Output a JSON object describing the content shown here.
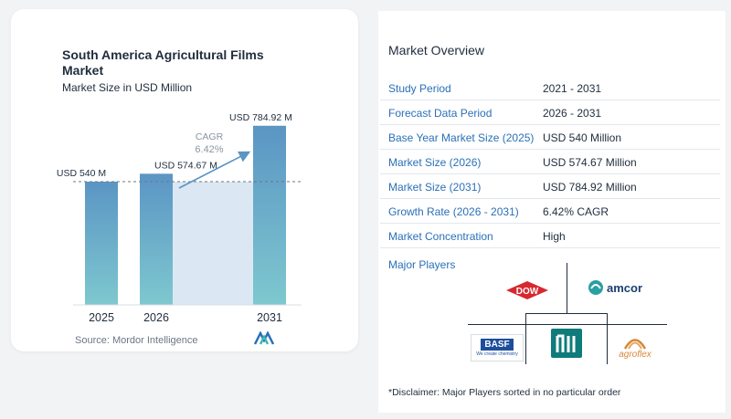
{
  "chart_data": {
    "type": "bar",
    "title": "South America Agricultural Films Market",
    "subtitle": "Market Size in USD Million",
    "categories": [
      "2025",
      "2026",
      "2031"
    ],
    "values": [
      540,
      574.67,
      784.92
    ],
    "data_labels": [
      "USD 540 M",
      "USD 574.67 M",
      "USD 784.92 M"
    ],
    "cagr_label": "CAGR",
    "cagr_value": "6.42%",
    "ylim": [
      0,
      800
    ],
    "grid": false,
    "colors": {
      "bar_top": "#5b95c4",
      "bar_bottom": "#7ec8cf",
      "highlight": "#dbe8f3",
      "arrow": "#5b95c4",
      "cagr_text": "#8a96a3"
    }
  },
  "source": "Source:  Mordor Intelligence",
  "overview": {
    "title": "Market Overview",
    "rows": [
      {
        "label": "Study Period",
        "value": "2021 - 2031"
      },
      {
        "label": "Forecast Data Period",
        "value": "2026 - 2031"
      },
      {
        "label": "Base Year Market Size (2025)",
        "value": "USD 540 Million"
      },
      {
        "label": "Market Size (2026)",
        "value": "USD 574.67 Million"
      },
      {
        "label": "Market Size (2031)",
        "value": "USD 784.92 Million"
      },
      {
        "label": "Growth Rate (2026 - 2031)",
        "value": "6.42% CAGR"
      },
      {
        "label": "Market Concentration",
        "value": "High"
      }
    ]
  },
  "players": {
    "title": "Major Players",
    "logos": [
      {
        "name": "DOW",
        "icon": "dow-logo",
        "color": "#d7282f"
      },
      {
        "name": "amcor",
        "icon": "amcor-logo",
        "color": "#1b3f73"
      },
      {
        "name": "BASF",
        "icon": "basf-logo",
        "tagline": "We create chemistry",
        "color": "#1c4e9d"
      },
      {
        "name": "mordor",
        "icon": "mordor-logo",
        "color": "#0f7b7b"
      },
      {
        "name": "agroflex",
        "icon": "agroflex-logo",
        "color": "#d9863a"
      }
    ]
  },
  "disclaimer": "*Disclaimer: Major Players sorted in no particular order"
}
